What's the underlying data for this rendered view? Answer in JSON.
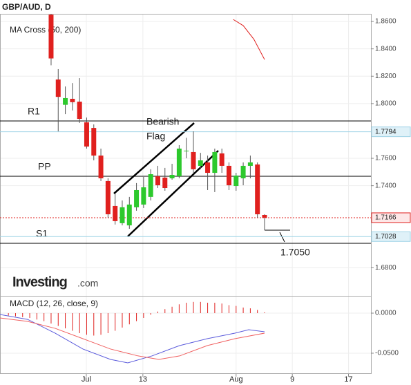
{
  "chart_data": {
    "type": "candlestick",
    "title": "GBP/AUD, D",
    "indicator_label": "MA Cross (50, 200)",
    "macd_label": "MACD (12, 26, close, 9)",
    "logo": {
      "brand": "Investing",
      "suffix": ".com"
    },
    "annotations": {
      "flag": [
        "Bearish",
        "Flag"
      ],
      "target": "1.7050"
    },
    "x": [
      0,
      1,
      2,
      3,
      4,
      5,
      6,
      7,
      8,
      9,
      10,
      11,
      12,
      13,
      14,
      15,
      16,
      17,
      18,
      19,
      20,
      21,
      22,
      23,
      24,
      25,
      26,
      27,
      28,
      29,
      30
    ],
    "candles": {
      "open": [
        1.865,
        1.8176,
        1.7991,
        1.8035,
        1.8014,
        1.7863,
        1.7822,
        1.762,
        1.7434,
        1.7252,
        1.7126,
        1.711,
        1.7242,
        1.7262,
        1.7318,
        1.7469,
        1.7459,
        1.7454,
        1.7469,
        1.7651,
        1.7646,
        1.7545,
        1.757,
        1.7494,
        1.7636,
        1.7545,
        1.7398,
        1.7454,
        1.7545,
        1.7555,
        1.7186
      ],
      "high": [
        1.8656,
        1.8252,
        1.8125,
        1.815,
        1.8186,
        1.7898,
        1.7848,
        1.7671,
        1.7454,
        1.7343,
        1.7292,
        1.7318,
        1.7419,
        1.7464,
        1.752,
        1.7545,
        1.753,
        1.756,
        1.7696,
        1.775,
        1.7797,
        1.764,
        1.762,
        1.7671,
        1.7671,
        1.757,
        1.7494,
        1.757,
        1.762,
        1.757,
        1.7191
      ],
      "low": [
        1.828,
        1.7797,
        1.7923,
        1.795,
        1.7858,
        1.7671,
        1.7585,
        1.7434,
        1.7166,
        1.7116,
        1.711,
        1.7085,
        1.7217,
        1.7237,
        1.7292,
        1.7383,
        1.7363,
        1.7444,
        1.7454,
        1.76,
        1.7494,
        1.752,
        1.7368,
        1.7353,
        1.7494,
        1.7368,
        1.7363,
        1.7403,
        1.7454,
        1.7166,
        1.7075
      ],
      "close": [
        1.833,
        1.8049,
        1.804,
        1.801,
        1.7888,
        1.7686,
        1.762,
        1.7454,
        1.7191,
        1.7141,
        1.7242,
        1.7262,
        1.7368,
        1.7388,
        1.7484,
        1.7403,
        1.7383,
        1.7479,
        1.7671,
        1.7656,
        1.752,
        1.7585,
        1.7494,
        1.7646,
        1.7545,
        1.7403,
        1.7474,
        1.7545,
        1.757,
        1.7191,
        1.7166
      ],
      "up_color": "#2dc92d",
      "down_color": "#e0201e"
    },
    "ma": {
      "color": "#e0201e",
      "x": [
        25.6,
        27,
        28.5,
        30
      ],
      "values": [
        1.8615,
        1.857,
        1.847,
        1.8322
      ]
    },
    "levels": [
      {
        "name": "R1",
        "value": 1.7873
      },
      {
        "name": "PP",
        "value": 1.7469
      },
      {
        "name": "S1",
        "value": 1.6979
      }
    ],
    "price_lines": [
      {
        "value": 1.7794,
        "label": "1.7794",
        "color": "#9fd3e6"
      },
      {
        "value": 1.7166,
        "label": "1.7166",
        "color": "#e0201e"
      },
      {
        "value": 1.7028,
        "label": "1.7028",
        "color": "#9fd3e6"
      }
    ],
    "xlim": [
      -7.18,
      44.95
    ],
    "ylim": [
      1.6595,
      1.8656
    ],
    "yticks": [
      {
        "value": 1.86,
        "label": "1.8600"
      },
      {
        "value": 1.84,
        "label": "1.8400"
      },
      {
        "value": 1.82,
        "label": "1.8200"
      },
      {
        "value": 1.8,
        "label": "1.8000"
      },
      {
        "value": 1.76,
        "label": "1.7600"
      },
      {
        "value": 1.74,
        "label": "1.7400"
      },
      {
        "value": 1.68,
        "label": "1.6800"
      }
    ],
    "xticks": [
      {
        "value": 4.95,
        "label": "Jul"
      },
      {
        "value": 12.9,
        "label": "13"
      },
      {
        "value": 26.0,
        "label": "Aug"
      },
      {
        "value": 33.9,
        "label": "9"
      },
      {
        "value": 41.8,
        "label": "17"
      }
    ],
    "macd": {
      "ylim": [
        -0.0759,
        0.0216
      ],
      "yticks": [
        {
          "value": 0,
          "label": "0.0000"
        },
        {
          "value": -0.05,
          "label": "-0.0500"
        }
      ],
      "histogram": {
        "color": "#e0201e",
        "x": [
          -6,
          -5,
          -4,
          -3,
          -2,
          -1,
          0,
          1,
          2,
          3,
          4,
          5,
          6,
          7,
          8,
          9,
          10,
          11,
          12,
          13,
          14,
          15,
          16,
          17,
          18,
          19,
          20,
          21,
          22,
          23,
          24,
          25,
          26,
          27,
          28,
          29,
          30
        ],
        "values": [
          -0.003,
          -0.004,
          -0.005,
          -0.006,
          -0.008,
          -0.01,
          -0.013,
          -0.016,
          -0.019,
          -0.022,
          -0.025,
          -0.027,
          -0.028,
          -0.027,
          -0.025,
          -0.022,
          -0.018,
          -0.014,
          -0.01,
          -0.006,
          -0.002,
          0.002,
          0.005,
          0.008,
          0.011,
          0.013,
          0.014,
          0.014,
          0.013,
          0.013,
          0.012,
          0.01,
          0.009,
          0.007,
          0.006,
          0.004,
          0.001
        ]
      },
      "macd_line": {
        "color": "#5b5bdc",
        "x": [
          -7.18,
          -3.3,
          0.58,
          4.47,
          8.35,
          10.78,
          14.17,
          18.06,
          21.94,
          25.83,
          27.77,
          30.0
        ],
        "values": [
          -0.0017,
          -0.0078,
          -0.025,
          -0.0448,
          -0.0578,
          -0.0621,
          -0.0534,
          -0.0405,
          -0.0319,
          -0.025,
          -0.0207,
          -0.0233
        ]
      },
      "signal_line": {
        "color": "#f06060",
        "x": [
          -7.18,
          -3.3,
          0.58,
          4.47,
          8.35,
          12.23,
          15.15,
          18.06,
          21.94,
          25.83,
          30.0
        ],
        "values": [
          -0.006,
          -0.0103,
          -0.019,
          -0.0319,
          -0.0448,
          -0.0534,
          -0.0578,
          -0.0534,
          -0.0405,
          -0.0319,
          -0.025
        ]
      }
    }
  }
}
